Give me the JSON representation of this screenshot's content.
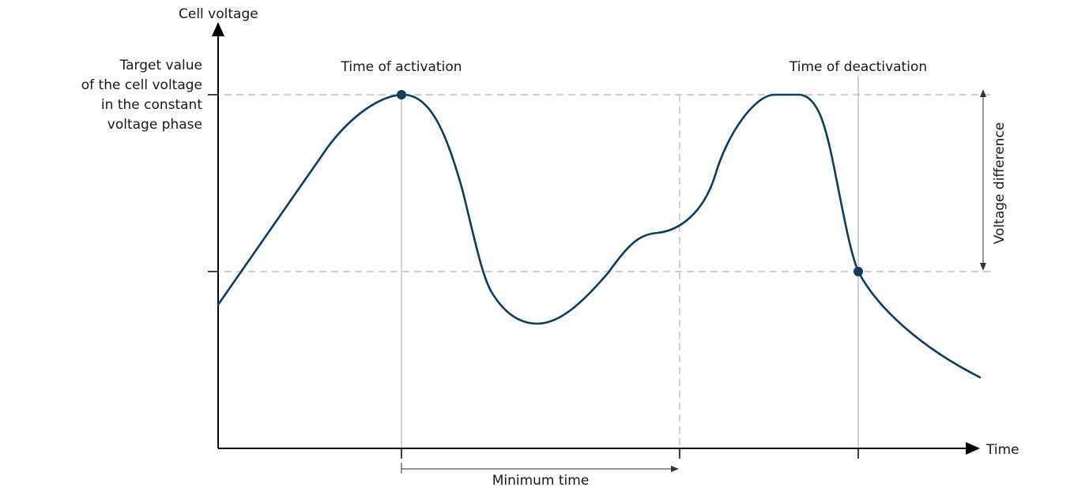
{
  "diagram": {
    "y_axis_label": "Cell voltage",
    "x_axis_label": "Time",
    "target_label_lines": [
      "Target value",
      "of the cell voltage",
      "in the constant",
      "voltage phase"
    ],
    "activation_label": "Time of activation",
    "deactivation_label": "Time of deactivation",
    "minimum_time_label": "Minimum time",
    "voltage_difference_label": "Voltage difference",
    "colors": {
      "curve": "#0f3d5c",
      "axis": "#000000",
      "guide": "#b3b3b3",
      "marker": "#0f3d5c"
    }
  }
}
